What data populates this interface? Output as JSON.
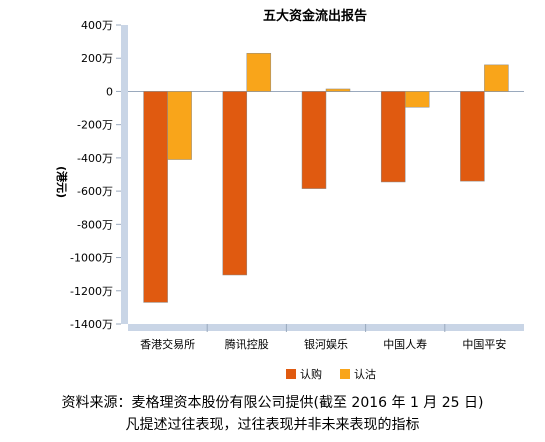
{
  "chart_data": {
    "type": "bar",
    "title": "五大资金流出报告",
    "ylabel": "(港元)",
    "ylim": [
      -1400,
      400
    ],
    "yticks": [
      -1400,
      -1200,
      -1000,
      -800,
      -600,
      -400,
      -200,
      0,
      200,
      400
    ],
    "ytick_labels": [
      "-1400万",
      "-1200万",
      "-1000万",
      "-800万",
      "-600万",
      "-400万",
      "-200万",
      "0",
      "200万",
      "400万"
    ],
    "grid": false,
    "legend_position": "bottom",
    "categories": [
      "香港交易所",
      "腾讯控股",
      "银河娱乐",
      "中国人寿",
      "中国平安"
    ],
    "series": [
      {
        "name": "认购",
        "color": "#e05a10",
        "values": [
          -1270,
          -1105,
          -585,
          -545,
          -540
        ]
      },
      {
        "name": "认沽",
        "color": "#f9a51a",
        "values": [
          -410,
          230,
          15,
          -95,
          160
        ]
      }
    ]
  },
  "footnote": {
    "line1": "资料来源：麦格理资本股份有限公司提供(截至 2016 年 1 月 25 日)",
    "line2": "凡提述过往表现，过往表现并非未来表现的指标"
  }
}
